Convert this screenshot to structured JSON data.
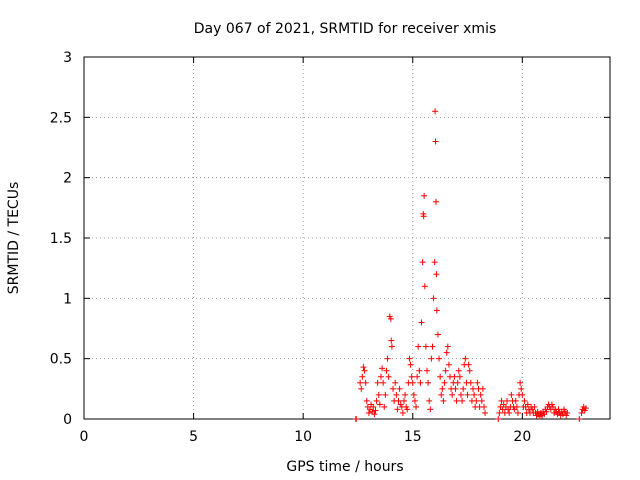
{
  "chart_data": {
    "type": "scatter",
    "title": "Day 067 of 2021, SRMTID for receiver xmis",
    "xlabel": "GPS time / hours",
    "ylabel": "SRMTID / TECUs",
    "xlim": [
      0,
      24
    ],
    "ylim": [
      0,
      3
    ],
    "xticks": [
      0,
      5,
      10,
      15,
      20
    ],
    "yticks": [
      0,
      0.5,
      1,
      1.5,
      2,
      2.5,
      3
    ],
    "grid": true,
    "series": [
      {
        "name": "SRMTID",
        "color": "#ff0000",
        "marker": "plus",
        "points": [
          [
            12.4,
            0.0
          ],
          [
            12.42,
            0.0
          ],
          [
            12.6,
            0.3
          ],
          [
            12.65,
            0.25
          ],
          [
            12.7,
            0.35
          ],
          [
            12.75,
            0.43
          ],
          [
            12.8,
            0.4
          ],
          [
            12.85,
            0.3
          ],
          [
            12.9,
            0.15
          ],
          [
            12.95,
            0.1
          ],
          [
            13.0,
            0.05
          ],
          [
            13.05,
            0.08
          ],
          [
            13.1,
            0.12
          ],
          [
            13.15,
            0.06
          ],
          [
            13.2,
            0.1
          ],
          [
            13.25,
            0.04
          ],
          [
            13.3,
            0.07
          ],
          [
            13.35,
            0.15
          ],
          [
            13.4,
            0.3
          ],
          [
            13.45,
            0.2
          ],
          [
            13.5,
            0.12
          ],
          [
            13.55,
            0.35
          ],
          [
            13.6,
            0.42
          ],
          [
            13.65,
            0.3
          ],
          [
            13.7,
            0.1
          ],
          [
            13.75,
            0.2
          ],
          [
            13.8,
            0.4
          ],
          [
            13.85,
            0.5
          ],
          [
            13.9,
            0.35
          ],
          [
            13.95,
            0.85
          ],
          [
            14.0,
            0.83
          ],
          [
            14.02,
            0.65
          ],
          [
            14.05,
            0.6
          ],
          [
            14.1,
            0.25
          ],
          [
            14.15,
            0.15
          ],
          [
            14.2,
            0.3
          ],
          [
            14.25,
            0.2
          ],
          [
            14.3,
            0.08
          ],
          [
            14.35,
            0.15
          ],
          [
            14.4,
            0.25
          ],
          [
            14.45,
            0.12
          ],
          [
            14.5,
            0.1
          ],
          [
            14.55,
            0.05
          ],
          [
            14.6,
            0.15
          ],
          [
            14.65,
            0.2
          ],
          [
            14.7,
            0.1
          ],
          [
            14.75,
            0.08
          ],
          [
            14.8,
            0.3
          ],
          [
            14.85,
            0.5
          ],
          [
            14.9,
            0.45
          ],
          [
            14.95,
            0.35
          ],
          [
            15.0,
            0.3
          ],
          [
            15.05,
            0.2
          ],
          [
            15.1,
            0.15
          ],
          [
            15.15,
            0.1
          ],
          [
            15.2,
            0.35
          ],
          [
            15.25,
            0.6
          ],
          [
            15.3,
            0.4
          ],
          [
            15.35,
            0.3
          ],
          [
            15.4,
            0.8
          ],
          [
            15.45,
            1.3
          ],
          [
            15.48,
            1.7
          ],
          [
            15.5,
            1.68
          ],
          [
            15.52,
            1.85
          ],
          [
            15.55,
            1.1
          ],
          [
            15.6,
            0.6
          ],
          [
            15.65,
            0.4
          ],
          [
            15.7,
            0.3
          ],
          [
            15.75,
            0.15
          ],
          [
            15.8,
            0.08
          ],
          [
            15.85,
            0.5
          ],
          [
            15.9,
            0.6
          ],
          [
            15.95,
            1.0
          ],
          [
            16.0,
            1.3
          ],
          [
            16.02,
            2.55
          ],
          [
            16.04,
            2.3
          ],
          [
            16.06,
            1.8
          ],
          [
            16.08,
            1.2
          ],
          [
            16.1,
            0.9
          ],
          [
            16.15,
            0.7
          ],
          [
            16.2,
            0.5
          ],
          [
            16.25,
            0.35
          ],
          [
            16.3,
            0.2
          ],
          [
            16.35,
            0.25
          ],
          [
            16.4,
            0.15
          ],
          [
            16.45,
            0.3
          ],
          [
            16.5,
            0.4
          ],
          [
            16.55,
            0.55
          ],
          [
            16.6,
            0.6
          ],
          [
            16.65,
            0.45
          ],
          [
            16.7,
            0.35
          ],
          [
            16.75,
            0.25
          ],
          [
            16.8,
            0.2
          ],
          [
            16.85,
            0.3
          ],
          [
            16.9,
            0.35
          ],
          [
            16.95,
            0.25
          ],
          [
            17.0,
            0.15
          ],
          [
            17.05,
            0.3
          ],
          [
            17.1,
            0.4
          ],
          [
            17.15,
            0.35
          ],
          [
            17.2,
            0.2
          ],
          [
            17.25,
            0.15
          ],
          [
            17.3,
            0.25
          ],
          [
            17.35,
            0.45
          ],
          [
            17.4,
            0.5
          ],
          [
            17.45,
            0.3
          ],
          [
            17.5,
            0.2
          ],
          [
            17.55,
            0.45
          ],
          [
            17.6,
            0.4
          ],
          [
            17.65,
            0.3
          ],
          [
            17.7,
            0.15
          ],
          [
            17.75,
            0.25
          ],
          [
            17.8,
            0.2
          ],
          [
            17.85,
            0.1
          ],
          [
            17.9,
            0.15
          ],
          [
            17.95,
            0.3
          ],
          [
            18.0,
            0.25
          ],
          [
            18.05,
            0.1
          ],
          [
            18.1,
            0.2
          ],
          [
            18.15,
            0.15
          ],
          [
            18.2,
            0.25
          ],
          [
            18.25,
            0.1
          ],
          [
            18.3,
            0.05
          ],
          [
            18.9,
            0.0
          ],
          [
            18.95,
            0.05
          ],
          [
            19.0,
            0.1
          ],
          [
            19.05,
            0.15
          ],
          [
            19.1,
            0.08
          ],
          [
            19.15,
            0.12
          ],
          [
            19.2,
            0.05
          ],
          [
            19.25,
            0.1
          ],
          [
            19.3,
            0.15
          ],
          [
            19.35,
            0.08
          ],
          [
            19.4,
            0.05
          ],
          [
            19.45,
            0.1
          ],
          [
            19.5,
            0.2
          ],
          [
            19.55,
            0.15
          ],
          [
            19.6,
            0.1
          ],
          [
            19.65,
            0.08
          ],
          [
            19.7,
            0.15
          ],
          [
            19.75,
            0.1
          ],
          [
            19.8,
            0.05
          ],
          [
            19.85,
            0.2
          ],
          [
            19.9,
            0.3
          ],
          [
            19.95,
            0.25
          ],
          [
            20.0,
            0.2
          ],
          [
            20.05,
            0.1
          ],
          [
            20.1,
            0.15
          ],
          [
            20.15,
            0.1
          ],
          [
            20.2,
            0.05
          ],
          [
            20.25,
            0.12
          ],
          [
            20.3,
            0.08
          ],
          [
            20.35,
            0.05
          ],
          [
            20.4,
            0.1
          ],
          [
            20.45,
            0.08
          ],
          [
            20.5,
            0.05
          ],
          [
            20.55,
            0.1
          ],
          [
            20.6,
            0.05
          ],
          [
            20.65,
            0.03
          ],
          [
            20.7,
            0.06
          ],
          [
            20.75,
            0.04
          ],
          [
            20.8,
            0.02
          ],
          [
            20.85,
            0.05
          ],
          [
            20.9,
            0.03
          ],
          [
            20.95,
            0.06
          ],
          [
            21.0,
            0.04
          ],
          [
            21.05,
            0.08
          ],
          [
            21.1,
            0.06
          ],
          [
            21.15,
            0.1
          ],
          [
            21.2,
            0.12
          ],
          [
            21.25,
            0.1
          ],
          [
            21.3,
            0.08
          ],
          [
            21.35,
            0.12
          ],
          [
            21.4,
            0.1
          ],
          [
            21.45,
            0.05
          ],
          [
            21.5,
            0.08
          ],
          [
            21.55,
            0.06
          ],
          [
            21.6,
            0.04
          ],
          [
            21.65,
            0.08
          ],
          [
            21.7,
            0.05
          ],
          [
            21.75,
            0.03
          ],
          [
            21.8,
            0.06
          ],
          [
            21.85,
            0.04
          ],
          [
            21.9,
            0.08
          ],
          [
            21.95,
            0.06
          ],
          [
            22.0,
            0.03
          ],
          [
            22.05,
            0.05
          ],
          [
            22.6,
            0.0
          ],
          [
            22.7,
            0.05
          ],
          [
            22.75,
            0.08
          ],
          [
            22.8,
            0.1
          ],
          [
            22.85,
            0.07
          ],
          [
            22.9,
            0.09
          ]
        ]
      }
    ]
  }
}
